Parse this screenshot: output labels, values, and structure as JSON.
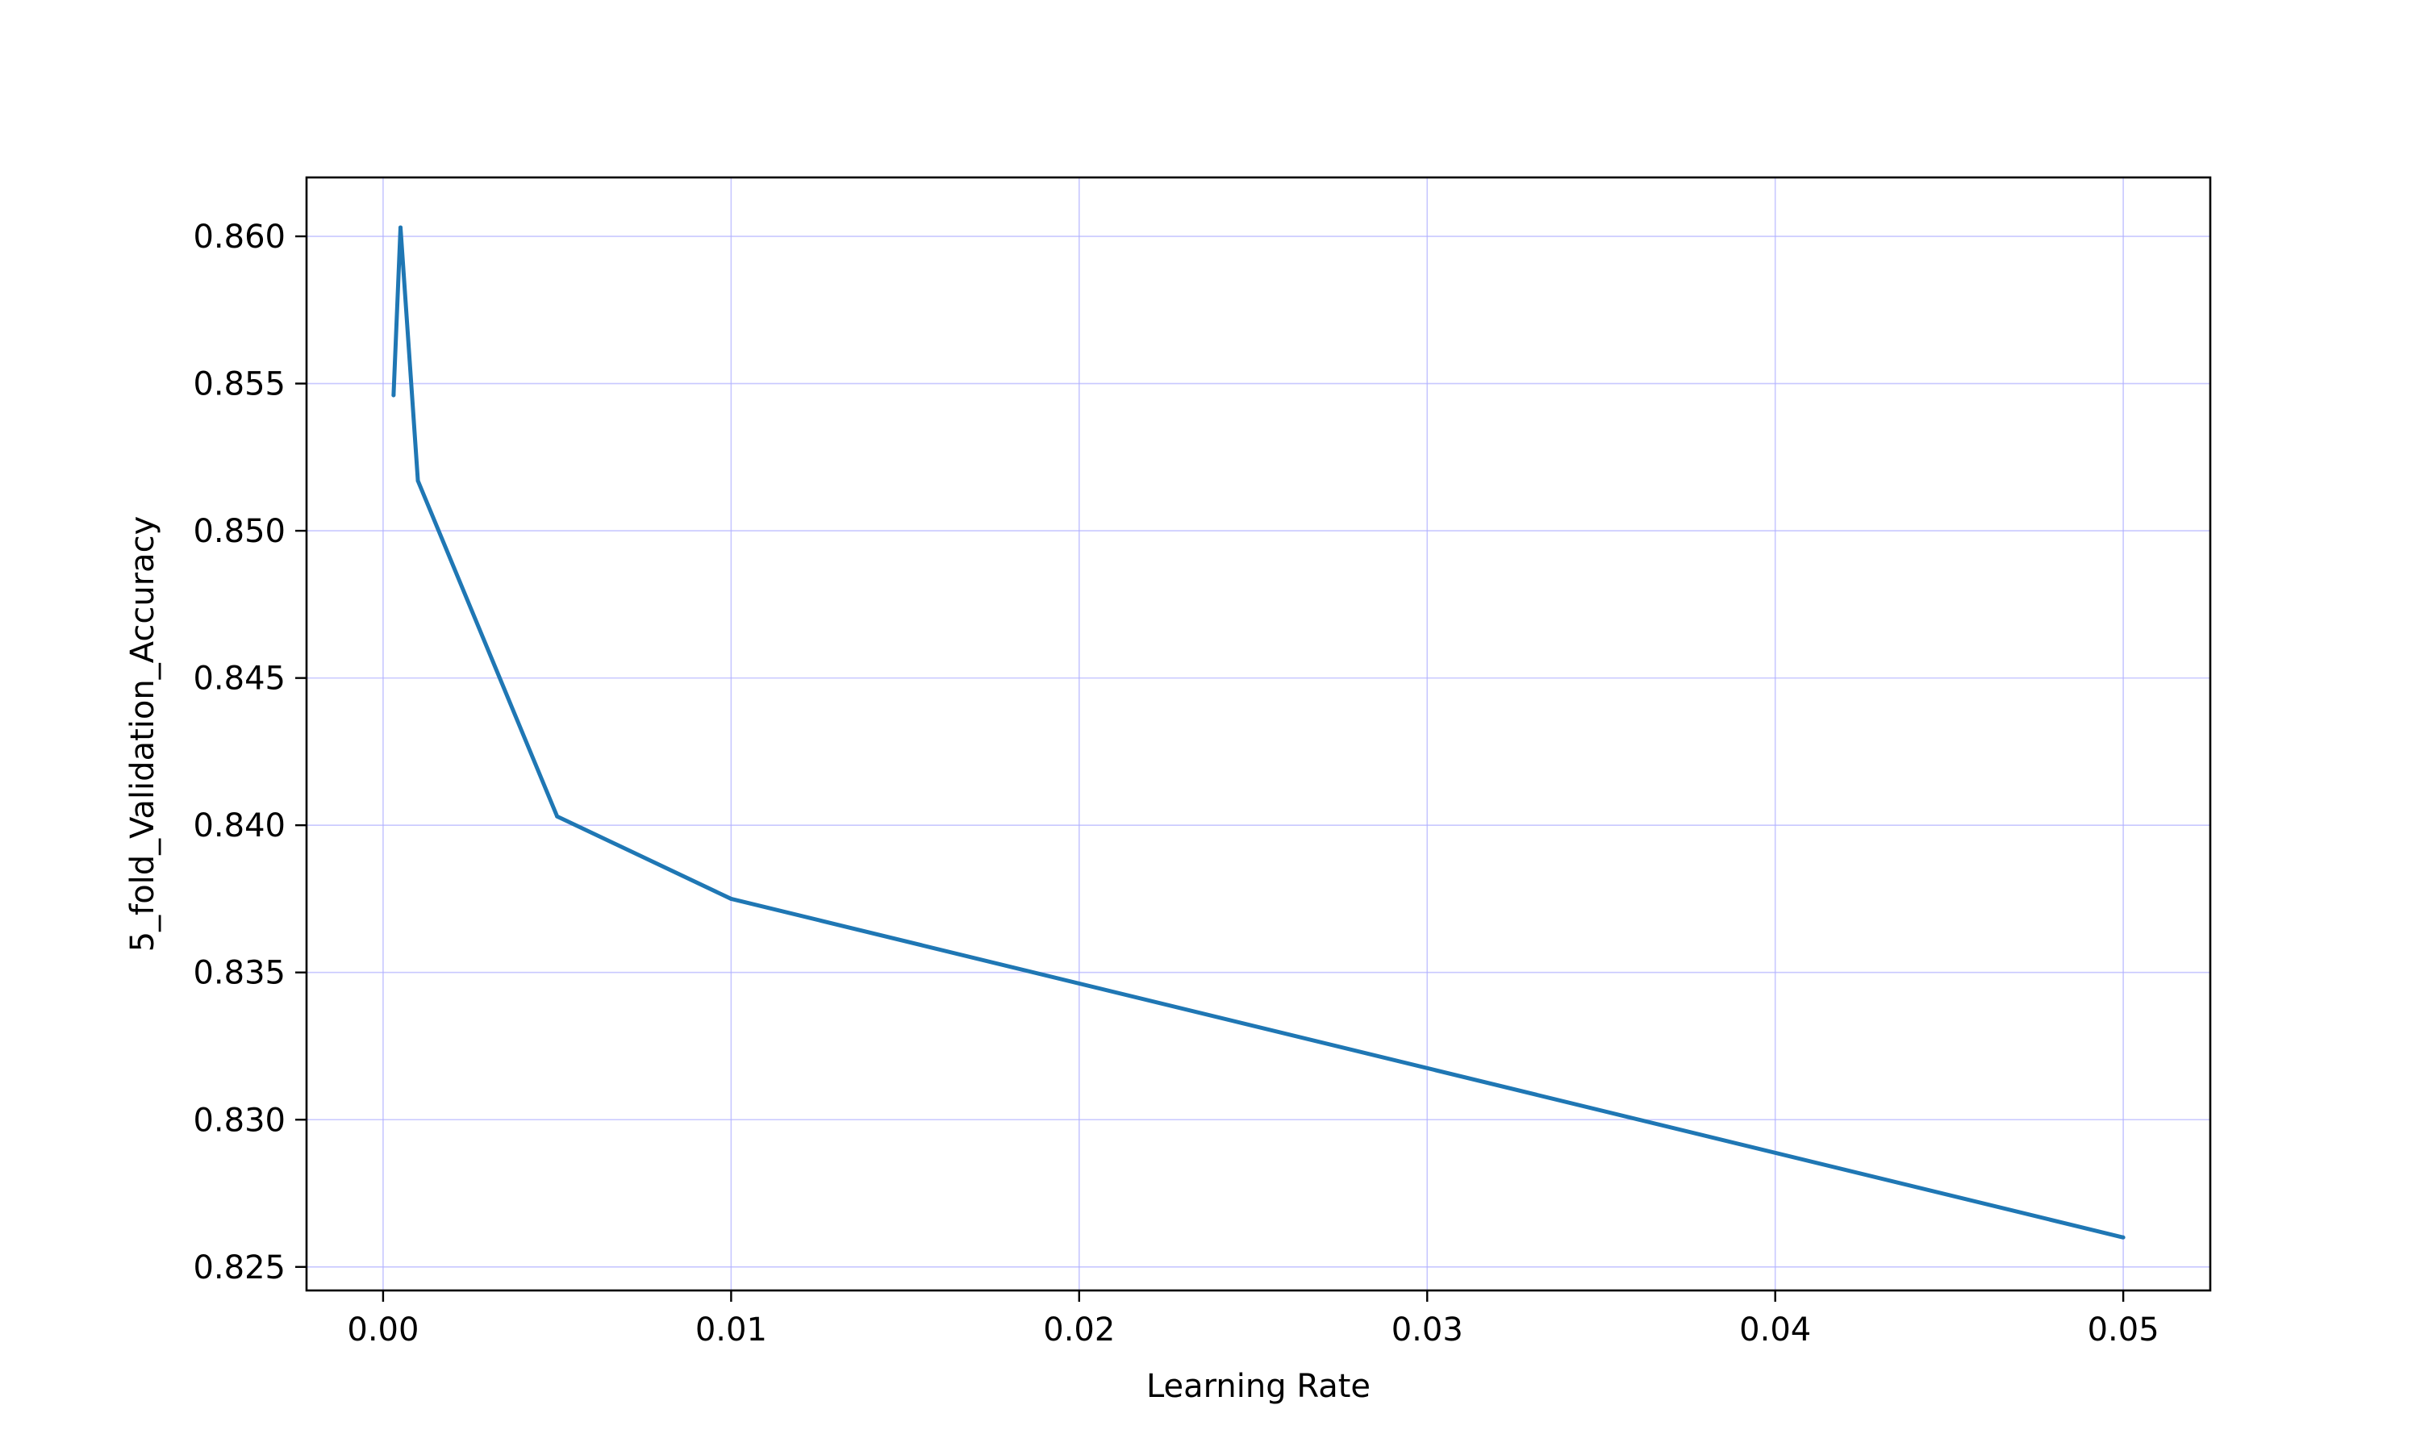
{
  "chart_data": {
    "type": "line",
    "title": "",
    "xlabel": "Learning Rate",
    "ylabel": "5_fold_Validation_Accuracy",
    "xlim": [
      -0.0022,
      0.0525
    ],
    "ylim": [
      0.8242,
      0.862
    ],
    "x_ticks": [
      0.0,
      0.01,
      0.02,
      0.03,
      0.04,
      0.05
    ],
    "x_tick_labels": [
      "0.00",
      "0.01",
      "0.02",
      "0.03",
      "0.04",
      "0.05"
    ],
    "y_ticks": [
      0.825,
      0.83,
      0.835,
      0.84,
      0.845,
      0.85,
      0.855,
      0.86
    ],
    "y_tick_labels": [
      "0.825",
      "0.830",
      "0.835",
      "0.840",
      "0.845",
      "0.850",
      "0.855",
      "0.860"
    ],
    "grid": true,
    "legend": "none",
    "series": [
      {
        "color": "#1f77b4",
        "x": [
          0.0003,
          0.0005,
          0.001,
          0.005,
          0.01,
          0.05
        ],
        "y": [
          0.8546,
          0.8603,
          0.8517,
          0.8403,
          0.8375,
          0.826
        ]
      }
    ],
    "colors": {
      "line": "#1f77b4",
      "grid": "#b0b0ff",
      "axes": "#000000"
    }
  }
}
